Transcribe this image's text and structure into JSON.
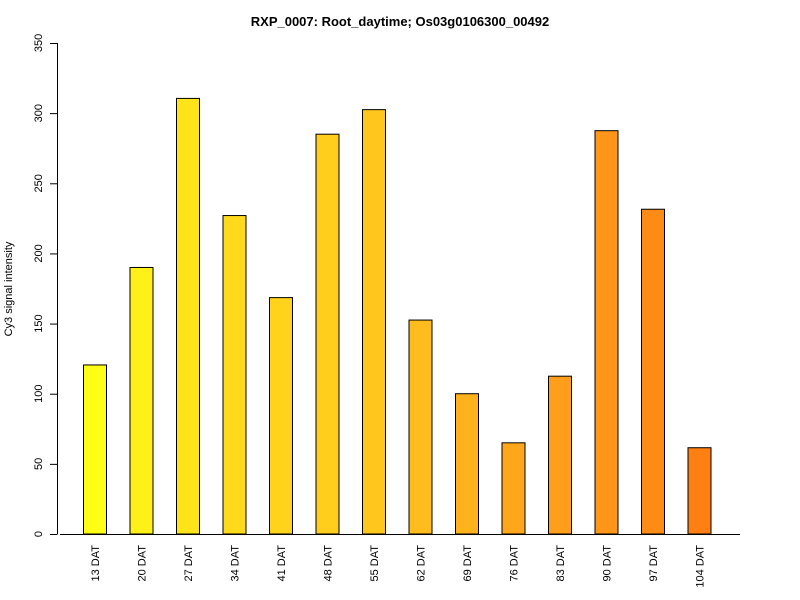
{
  "chart_data": {
    "type": "bar",
    "title": "RXP_0007: Root_daytime; Os03g0106300_00492",
    "xlabel": "",
    "ylabel": "Cy3 signal intensity",
    "ylim": [
      0,
      350
    ],
    "yticks": [
      0,
      50,
      100,
      150,
      200,
      250,
      300,
      350
    ],
    "grid": false,
    "categories": [
      "13 DAT",
      "20 DAT",
      "27 DAT",
      "34 DAT",
      "41 DAT",
      "48 DAT",
      "55 DAT",
      "62 DAT",
      "69 DAT",
      "76 DAT",
      "83 DAT",
      "90 DAT",
      "97 DAT",
      "104 DAT"
    ],
    "values": [
      120.5,
      190,
      310.5,
      227,
      168.5,
      285,
      302.5,
      152.5,
      100,
      65,
      112.5,
      287.5,
      231.5,
      61.5
    ],
    "colors": [
      "#FFFF16",
      "#FFF018",
      "#FFE41A",
      "#FFD91B",
      "#FFD31C",
      "#FFCD1C",
      "#FFC71D",
      "#FFBC1C",
      "#FFB21C",
      "#FFA61B",
      "#FF9E1A",
      "#FF9519",
      "#FF8B17",
      "#FF7F13"
    ]
  }
}
